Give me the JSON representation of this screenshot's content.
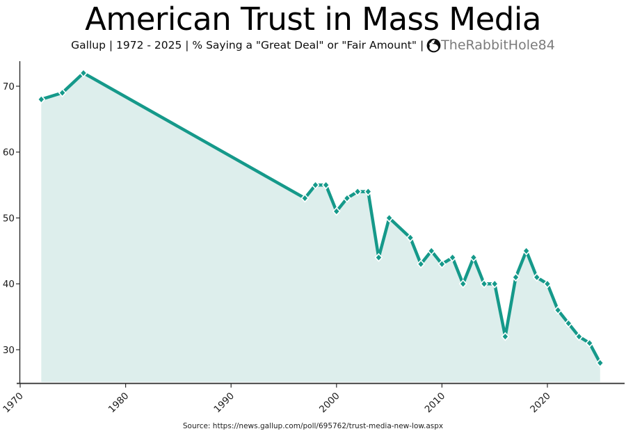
{
  "header": {
    "title": "American Trust in Mass Media",
    "subtitle": "Gallup | 1972 - 2025 | % Saying a \"Great Deal\" or \"Fair Amount\" |",
    "watermark": "TheRabbitHole84",
    "logo_icon": "rabbit-in-circle-icon"
  },
  "footer": {
    "source": "Source: https://news.gallup.com/poll/695762/trust-media-new-low.aspx"
  },
  "chart_data": {
    "type": "line",
    "title": "American Trust in Mass Media",
    "xlabel": "",
    "ylabel": "",
    "series": [
      {
        "name": "% saying Great Deal or Fair Amount",
        "x": [
          1972,
          1974,
          1976,
          1997,
          1998,
          1999,
          2000,
          2001,
          2002,
          2003,
          2004,
          2005,
          2007,
          2008,
          2009,
          2010,
          2011,
          2012,
          2013,
          2014,
          2015,
          2016,
          2017,
          2018,
          2019,
          2020,
          2021,
          2022,
          2023,
          2024,
          2025
        ],
        "values": [
          68,
          69,
          72,
          53,
          55,
          55,
          51,
          53,
          54,
          54,
          44,
          50,
          47,
          43,
          45,
          43,
          44,
          40,
          44,
          40,
          40,
          32,
          41,
          45,
          41,
          40,
          36,
          34,
          32,
          31,
          28
        ]
      }
    ],
    "x_ticks": [
      1970,
      1980,
      1990,
      2000,
      2010,
      2020
    ],
    "y_ticks": [
      30,
      40,
      50,
      60,
      70
    ],
    "xlim": [
      1968.1,
      2027.4
    ],
    "ylim": [
      25,
      73.6
    ],
    "grid": false,
    "legend": "none",
    "marker": "diamond",
    "area_fill": true,
    "colors": {
      "line": "#15998a",
      "fill": "#ddeeec",
      "axis": "#2b2b2b",
      "tick_label": "#1a1a1a",
      "marker_edge": "#ffffff"
    }
  }
}
